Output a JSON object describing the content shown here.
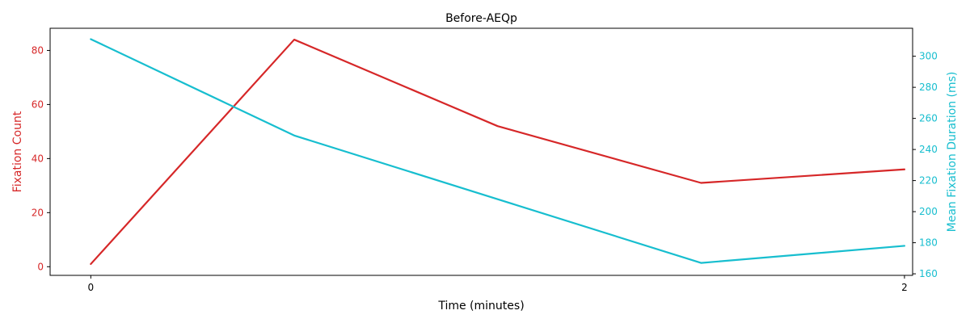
{
  "chart_data": {
    "type": "line",
    "title": "Before-AEQp",
    "xlabel": "Time (minutes)",
    "x_ticks": [
      0,
      2
    ],
    "x": [
      0,
      0.5,
      1.0,
      1.5,
      2.0
    ],
    "xlim": [
      -0.1,
      2.02
    ],
    "grid": false,
    "series": [
      {
        "axis": "left",
        "color": "#d62728",
        "values": [
          1,
          84,
          52,
          31,
          36
        ]
      },
      {
        "axis": "right",
        "color": "#17becf",
        "values": [
          311,
          249,
          208,
          167,
          178
        ]
      }
    ],
    "y_left": {
      "label": "Fixation Count",
      "color": "#d62728",
      "lim": [
        -3.2,
        88.2
      ],
      "ticks": [
        0,
        20,
        40,
        60,
        80
      ]
    },
    "y_right": {
      "label": "Mean Fixation Duration (ms)",
      "color": "#17becf",
      "lim": [
        159,
        318
      ],
      "ticks": [
        160,
        180,
        200,
        220,
        240,
        260,
        280,
        300
      ]
    }
  }
}
